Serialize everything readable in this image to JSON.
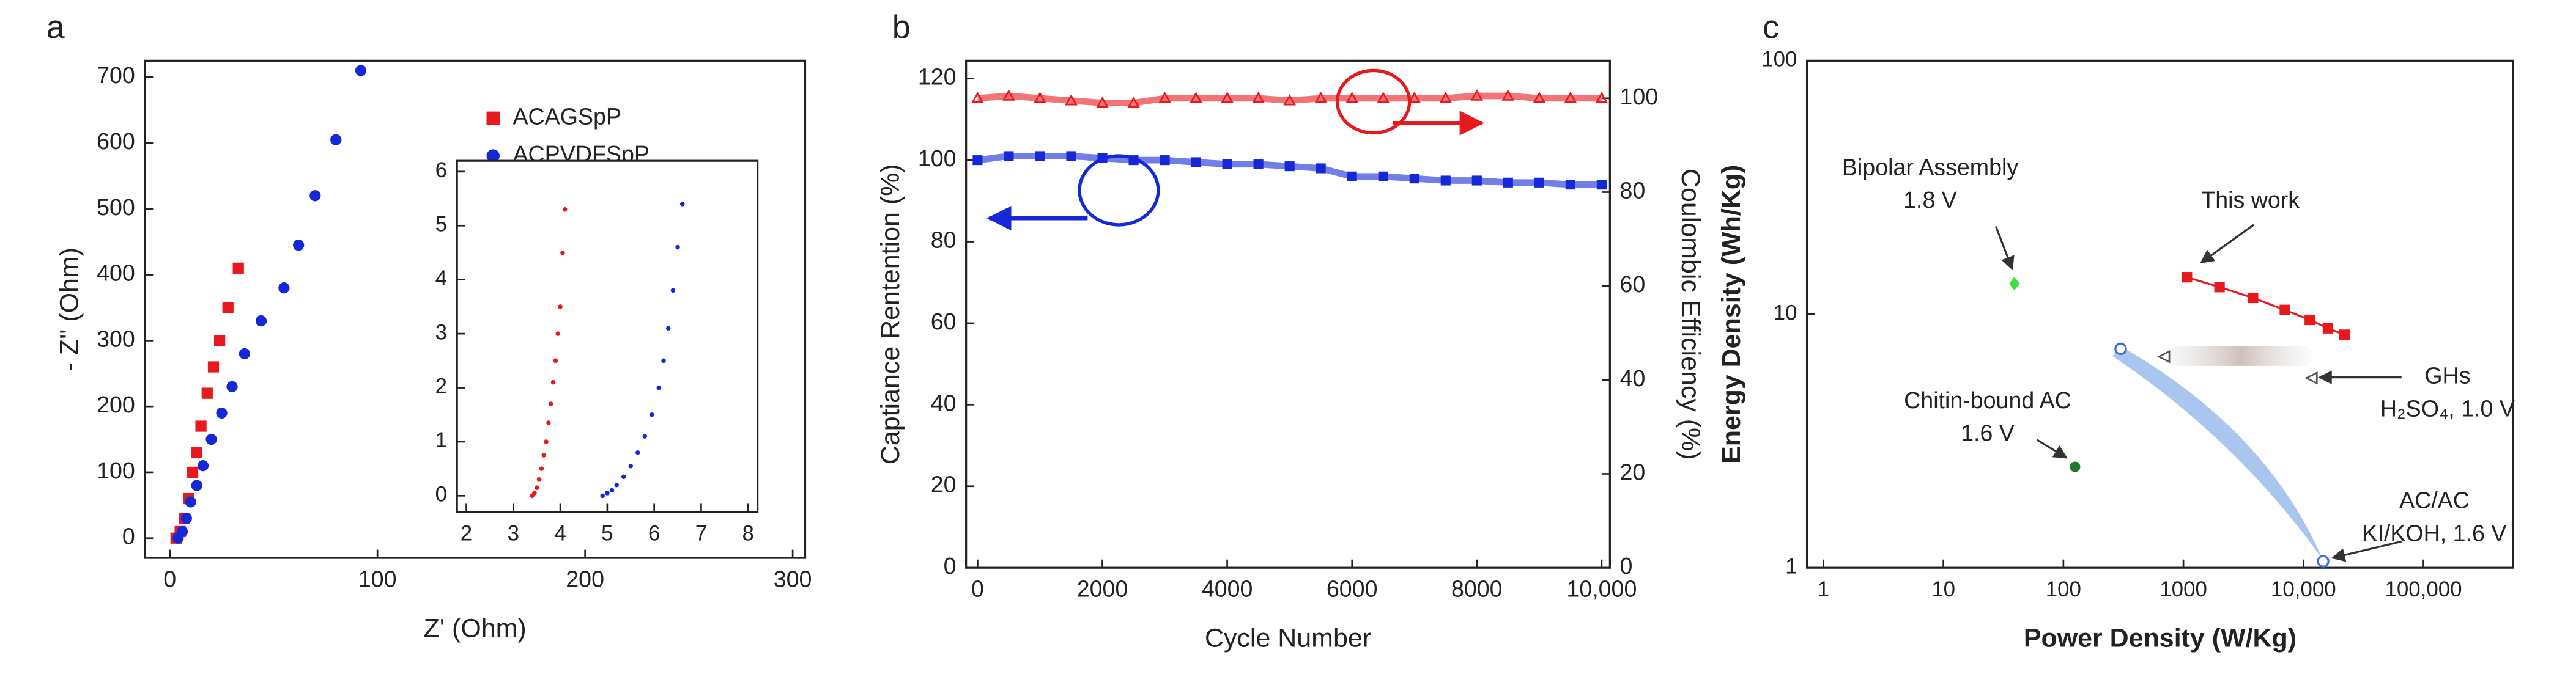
{
  "chart_data": [
    {
      "type": "scatter",
      "panel_label": "a",
      "x_label": "Z' (Ohm)",
      "y_label": "- Z'' (Ohm)",
      "xlim": [
        -12,
        306
      ],
      "ylim": [
        -30,
        725
      ],
      "xticks": [
        0,
        100,
        200,
        300
      ],
      "yticks": [
        0,
        100,
        200,
        300,
        400,
        500,
        600,
        700
      ],
      "legend": "upper right",
      "series": [
        {
          "name": "ACAGSpP",
          "color": "#e8191c",
          "marker": "square",
          "x": [
            3,
            5,
            7,
            9,
            11,
            13,
            15,
            18,
            21,
            24,
            28,
            33
          ],
          "values": [
            0,
            10,
            30,
            60,
            100,
            130,
            170,
            220,
            260,
            300,
            350,
            410
          ]
        },
        {
          "name": "ACPVDFSpP",
          "color": "#1428d8",
          "marker": "circle",
          "x": [
            4,
            6,
            8,
            10,
            13,
            16,
            20,
            25,
            30,
            36,
            44,
            55,
            62,
            70,
            80,
            92
          ],
          "values": [
            0,
            10,
            30,
            55,
            80,
            110,
            150,
            190,
            230,
            280,
            330,
            380,
            445,
            520,
            605,
            710
          ]
        }
      ]
    },
    {
      "type": "scatter",
      "xlim": [
        1.8,
        8.2
      ],
      "ylim": [
        -0.3,
        6.2
      ],
      "xticks": [
        2,
        3,
        4,
        5,
        6,
        7,
        8
      ],
      "yticks": [
        0,
        1,
        2,
        3,
        4,
        5,
        6
      ],
      "series": [
        {
          "color": "#e8191c",
          "marker": "dot",
          "x": [
            3.4,
            3.45,
            3.5,
            3.55,
            3.6,
            3.65,
            3.7,
            3.75,
            3.8,
            3.85,
            3.9,
            3.95,
            4.0,
            4.05,
            4.1
          ],
          "values": [
            0,
            0.05,
            0.15,
            0.3,
            0.5,
            0.75,
            1.0,
            1.35,
            1.7,
            2.1,
            2.5,
            3.0,
            3.5,
            4.5,
            5.3
          ]
        },
        {
          "color": "#1428d8",
          "marker": "dot",
          "x": [
            4.9,
            5.0,
            5.1,
            5.2,
            5.35,
            5.5,
            5.65,
            5.8,
            5.95,
            6.1,
            6.2,
            6.3,
            6.4,
            6.5,
            6.6
          ],
          "values": [
            0,
            0.05,
            0.1,
            0.2,
            0.35,
            0.55,
            0.8,
            1.1,
            1.5,
            2.0,
            2.5,
            3.1,
            3.8,
            4.6,
            5.4
          ]
        }
      ]
    },
    {
      "type": "line",
      "panel_label": "b",
      "x_label": "Cycle Number",
      "y_label": "Captiance Rentention (%)",
      "y2_label": "Coulombic Efficiency (%)",
      "xlim": [
        -184,
        10132
      ],
      "ylim": [
        0,
        124.4
      ],
      "y2lim": [
        0,
        108
      ],
      "xticks": [
        0,
        2000,
        4000,
        6000,
        8000,
        {
          "value": 10000,
          "label": "10,000"
        }
      ],
      "yticks": [
        0,
        20,
        40,
        60,
        80,
        100,
        120
      ],
      "y2ticks": [
        0,
        20,
        40,
        60,
        80,
        100
      ],
      "x": [
        0,
        500,
        1000,
        1500,
        2000,
        2500,
        3000,
        3500,
        4000,
        4500,
        5000,
        5500,
        6000,
        6500,
        7000,
        7500,
        8000,
        8500,
        9000,
        9500,
        10000
      ],
      "series": [
        {
          "color": "#1428d8",
          "marker": "square",
          "values": [
            100,
            101,
            101,
            101,
            100.5,
            100,
            100,
            99.5,
            99,
            99,
            98.5,
            98,
            96,
            96,
            95.5,
            95,
            95,
            94.5,
            94.5,
            94,
            94
          ]
        },
        {
          "color": "#e8191c",
          "marker": "triangle",
          "axis": "y2",
          "values": [
            100,
            100.5,
            100,
            99.5,
            99,
            99,
            100,
            100,
            100,
            100,
            99.5,
            100,
            100,
            100,
            100,
            100,
            100.5,
            100.5,
            100,
            100,
            100
          ]
        }
      ]
    },
    {
      "type": "scatter",
      "panel_label": "c",
      "x_label": "Power Density (W/Kg)",
      "y_label": "Energy Density (Wh/Kg)",
      "xscale": "log",
      "yscale": "log",
      "xlim": [
        0.73,
        560000
      ],
      "ylim": [
        1,
        100
      ],
      "xticks": [
        1,
        10,
        100,
        1000,
        {
          "value": 10000,
          "label": "10,000"
        },
        {
          "value": 100000,
          "label": "100,000"
        }
      ],
      "yticks": [
        1,
        10,
        100
      ],
      "series": [
        {
          "name": "This work",
          "color": "#e8191c",
          "marker": "square",
          "connect": true,
          "x": [
            1070,
            2000,
            3800,
            7000,
            11300,
            16000,
            22000
          ],
          "values": [
            14,
            12.8,
            11.6,
            10.4,
            9.5,
            8.8,
            8.3
          ]
        },
        {
          "name": "Bipolar Assembly",
          "annotation": "1.8 V",
          "color": "#3ee03a",
          "marker": "diamond",
          "x": [
            39
          ],
          "values": [
            13.2
          ]
        },
        {
          "name": "Chitin-bound AC",
          "annotation": "1.6 V",
          "color": "#1f7a2a",
          "marker": "circle",
          "x": [
            125
          ],
          "values": [
            2.5
          ]
        },
        {
          "name": "GHs",
          "annotation": "H₂SO₄, 1.0 V",
          "color": "#555555",
          "marker": "open-triangle",
          "x": [
            690,
            11700
          ],
          "values": [
            6.8,
            5.6
          ]
        },
        {
          "name": "AC/AC",
          "annotation": "KI/KOH, 1.6 V",
          "color": "#3a6fd8",
          "marker": "open-circle",
          "x": [
            300,
            14600
          ],
          "values": [
            7.3,
            1.06
          ]
        }
      ]
    }
  ]
}
